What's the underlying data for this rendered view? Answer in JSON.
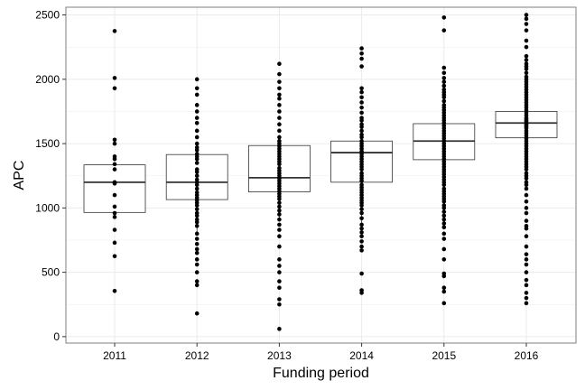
{
  "chart_data": {
    "type": "box",
    "xlabel": "Funding period",
    "ylabel": "APC",
    "ylim": [
      -50,
      2560
    ],
    "yticks": [
      0,
      500,
      1000,
      1500,
      2000,
      2500
    ],
    "grid": true,
    "colors": {
      "background": "#ffffff",
      "grid": "#ebebeb",
      "box": "#333333",
      "points": "#000000",
      "border": "#7f7f7f"
    },
    "categories": [
      "2011",
      "2012",
      "2013",
      "2014",
      "2015",
      "2016"
    ],
    "boxes": [
      {
        "category": "2011",
        "q1": 965,
        "median": 1200,
        "q3": 1335,
        "whisker_low": 965,
        "whisker_high": 1335
      },
      {
        "category": "2012",
        "q1": 1065,
        "median": 1200,
        "q3": 1415,
        "whisker_low": 810,
        "whisker_high": 1415
      },
      {
        "category": "2013",
        "q1": 1125,
        "median": 1235,
        "q3": 1485,
        "whisker_low": 900,
        "whisker_high": 1485
      },
      {
        "category": "2014",
        "q1": 1200,
        "median": 1430,
        "q3": 1520,
        "whisker_low": 830,
        "whisker_high": 1520
      },
      {
        "category": "2015",
        "q1": 1375,
        "median": 1520,
        "q3": 1655,
        "whisker_low": 1375,
        "whisker_high": 1655
      },
      {
        "category": "2016",
        "q1": 1545,
        "median": 1660,
        "q3": 1750,
        "whisker_low": 1545,
        "whisker_high": 1750
      }
    ],
    "points": [
      {
        "category": "2011",
        "values": [
          2375,
          2010,
          1930,
          1530,
          1500,
          1400,
          1380,
          1340,
          1300,
          1200,
          1190,
          1100,
          1010,
          960,
          930,
          830,
          730,
          625,
          355
        ]
      },
      {
        "category": "2012",
        "values": [
          2000,
          1930,
          1880,
          1800,
          1750,
          1700,
          1660,
          1600,
          1550,
          1500,
          1470,
          1450,
          1420,
          1400,
          1380,
          1350,
          1300,
          1280,
          1250,
          1220,
          1200,
          1180,
          1150,
          1120,
          1100,
          1080,
          1060,
          1040,
          1020,
          990,
          960,
          940,
          910,
          890,
          860,
          800,
          760,
          720,
          680,
          650,
          600,
          560,
          500,
          430,
          400,
          180
        ]
      },
      {
        "category": "2013",
        "values": [
          2120,
          2040,
          1980,
          1930,
          1880,
          1850,
          1800,
          1750,
          1700,
          1650,
          1600,
          1550,
          1520,
          1500,
          1480,
          1460,
          1440,
          1420,
          1400,
          1380,
          1360,
          1340,
          1310,
          1290,
          1270,
          1250,
          1230,
          1210,
          1190,
          1170,
          1150,
          1130,
          1110,
          1090,
          1070,
          1040,
          1010,
          980,
          950,
          910,
          870,
          830,
          780,
          700,
          600,
          550,
          500,
          430,
          380,
          290,
          250,
          60
        ]
      },
      {
        "category": "2014",
        "values": [
          2240,
          2200,
          2160,
          2100,
          1930,
          1900,
          1860,
          1820,
          1780,
          1740,
          1700,
          1680,
          1650,
          1630,
          1600,
          1570,
          1550,
          1520,
          1500,
          1480,
          1460,
          1440,
          1420,
          1400,
          1380,
          1360,
          1340,
          1320,
          1300,
          1270,
          1250,
          1230,
          1210,
          1180,
          1160,
          1140,
          1120,
          1100,
          1080,
          1060,
          1040,
          1020,
          990,
          960,
          920,
          870,
          840,
          810,
          780,
          740,
          700,
          670,
          490,
          360,
          340
        ]
      },
      {
        "category": "2015",
        "values": [
          2480,
          2380,
          2090,
          2050,
          2010,
          1980,
          1950,
          1920,
          1900,
          1880,
          1860,
          1830,
          1800,
          1780,
          1760,
          1740,
          1720,
          1700,
          1680,
          1660,
          1640,
          1620,
          1600,
          1580,
          1560,
          1540,
          1520,
          1500,
          1480,
          1460,
          1440,
          1420,
          1400,
          1380,
          1360,
          1340,
          1320,
          1300,
          1280,
          1260,
          1240,
          1220,
          1200,
          1180,
          1150,
          1130,
          1110,
          1090,
          1070,
          1050,
          1020,
          1000,
          970,
          940,
          910,
          880,
          850,
          800,
          760,
          680,
          600,
          490,
          470,
          380,
          350,
          260
        ]
      },
      {
        "category": "2016",
        "values": [
          2500,
          2470,
          2430,
          2380,
          2300,
          2250,
          2180,
          2150,
          2120,
          2100,
          2080,
          2050,
          2020,
          2000,
          1980,
          1960,
          1940,
          1920,
          1900,
          1880,
          1860,
          1840,
          1820,
          1800,
          1780,
          1760,
          1740,
          1720,
          1700,
          1690,
          1680,
          1670,
          1660,
          1650,
          1640,
          1630,
          1620,
          1600,
          1580,
          1560,
          1540,
          1520,
          1500,
          1480,
          1460,
          1440,
          1420,
          1400,
          1380,
          1360,
          1340,
          1320,
          1300,
          1270,
          1250,
          1230,
          1200,
          1180,
          1150,
          1100,
          1050,
          1000,
          960,
          900,
          860,
          840,
          780,
          700,
          640,
          600,
          560,
          500,
          440,
          400,
          340,
          300,
          260
        ]
      }
    ]
  }
}
